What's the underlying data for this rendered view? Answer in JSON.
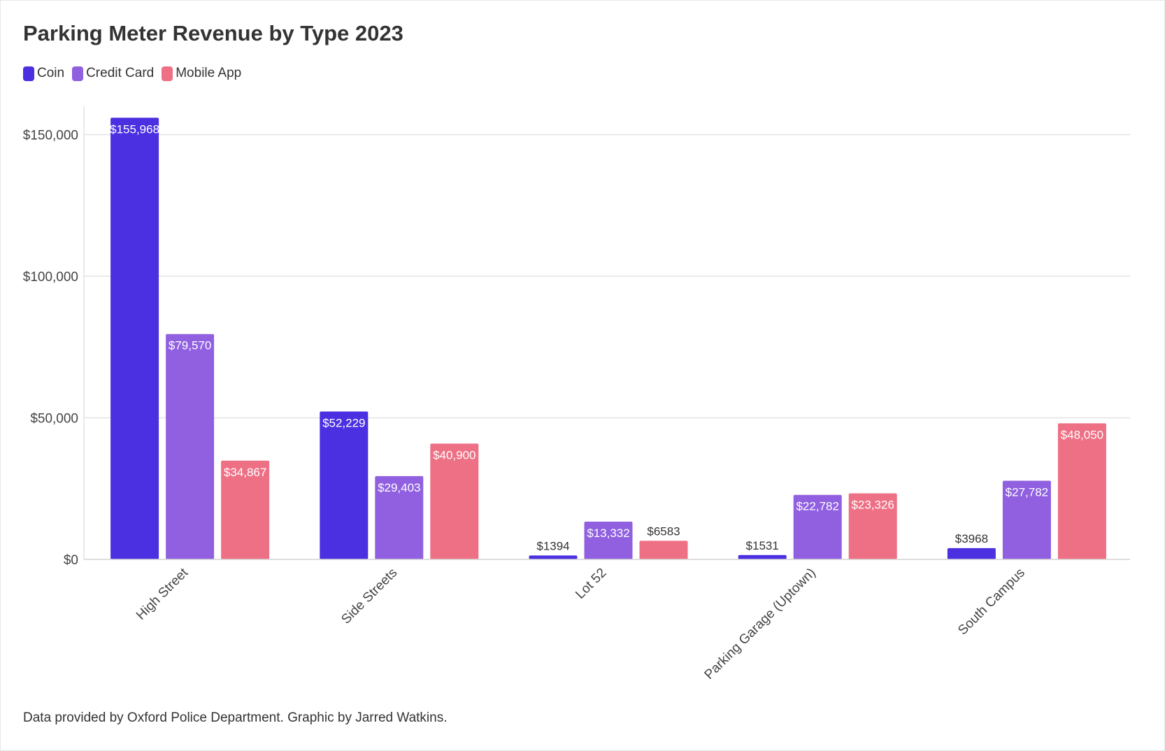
{
  "chart_data": {
    "type": "bar",
    "title": "Parking Meter Revenue by Type 2023",
    "xlabel": "",
    "ylabel": "",
    "categories": [
      "High Street",
      "Side Streets",
      "Lot 52",
      "Parking Garage (Uptown)",
      "South Campus"
    ],
    "series": [
      {
        "name": "Coin",
        "color": "#4a30e0",
        "values": [
          155968,
          52229,
          1394,
          1531,
          3968
        ],
        "labels": [
          "$155,968",
          "$52,229",
          "$1394",
          "$1531",
          "$3968"
        ]
      },
      {
        "name": "Credit Card",
        "color": "#9060e0",
        "values": [
          79570,
          29403,
          13332,
          22782,
          27782
        ],
        "labels": [
          "$79,570",
          "$29,403",
          "$13,332",
          "$22,782",
          "$27,782"
        ]
      },
      {
        "name": "Mobile App",
        "color": "#ee7085",
        "values": [
          34867,
          40900,
          6583,
          23326,
          48050
        ],
        "labels": [
          "$34,867",
          "$40,900",
          "$6583",
          "$23,326",
          "$48,050"
        ]
      }
    ],
    "ylim": [
      0,
      160000
    ],
    "y_ticks": [
      0,
      50000,
      100000,
      150000
    ],
    "y_tick_labels": [
      "$0",
      "$50,000",
      "$100,000",
      "$150,000"
    ],
    "grid": true,
    "legend_position": "top-left"
  },
  "footer": "Data provided by Oxford Police Department. Graphic by Jarred Watkins."
}
